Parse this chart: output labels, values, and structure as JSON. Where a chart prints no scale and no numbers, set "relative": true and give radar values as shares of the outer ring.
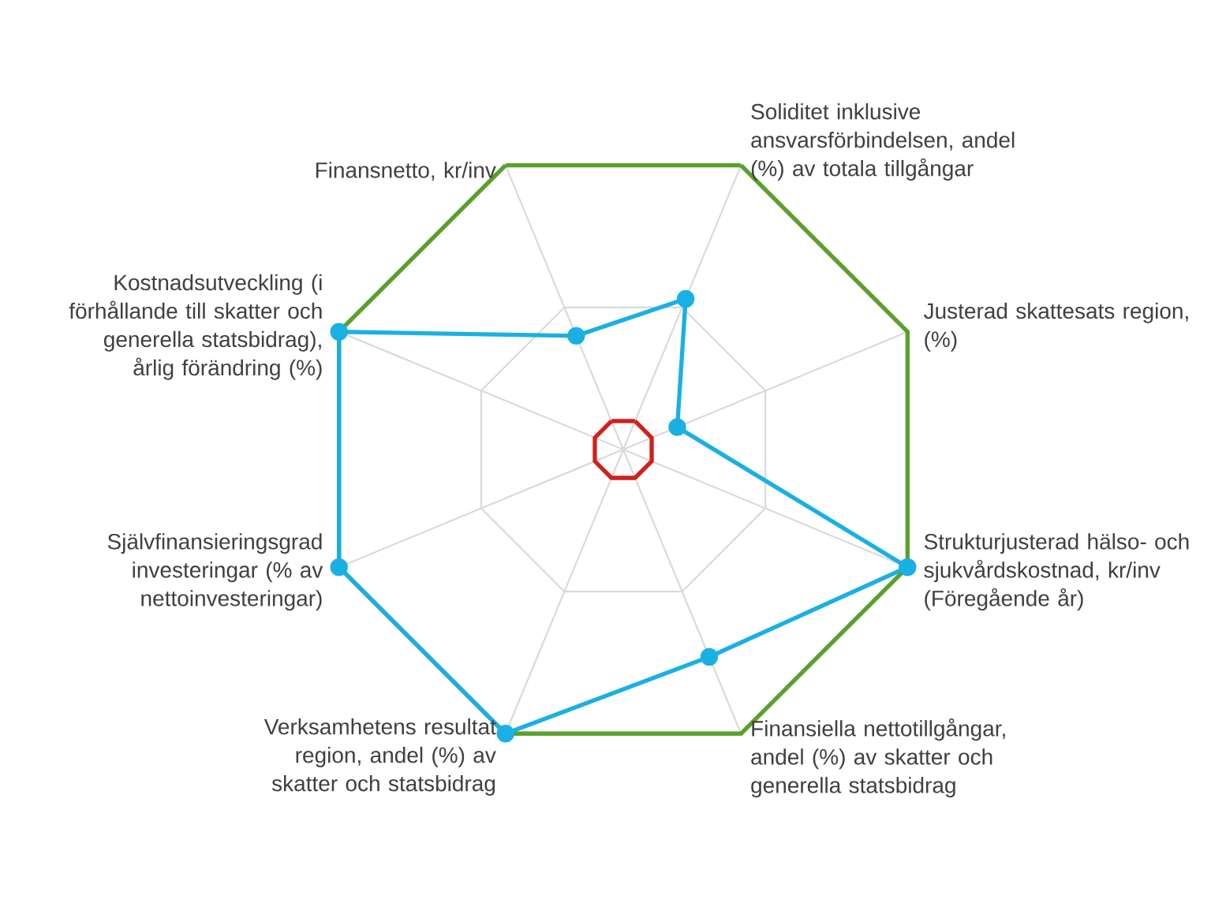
{
  "chart_data": {
    "type": "radar",
    "relative": true,
    "grid": true,
    "line_style": "solid",
    "categories": [
      "Soliditet inklusive ansvarsförbindelsen, andel (%) av totala tillgångar",
      "Justerad skattesats region, (%)",
      "Strukturjusterad hälso- och sjukvårdskostnad, kr/inv (Föregående år)",
      "Finansiella nettotillgångar, andel (%) av skatter och generella statsbidrag",
      "Verksamhetens resultat region, andel (%) av skatter och statsbidrag",
      "Självfinansieringsgrad investeringar (% av nettoinvesteringar)",
      "Kostnadsutveckling (i förhållande till skatter och generella statsbidrag), årlig förändring (%)",
      "Finansnetto, kr/inv"
    ],
    "series": [
      {
        "color": "#5aa02c",
        "marker": "none",
        "values": [
          1,
          1,
          1,
          1,
          1,
          1,
          1,
          1
        ]
      },
      {
        "color": "#d0211c",
        "marker": "none",
        "values": [
          0.1,
          0.1,
          0.1,
          0.1,
          0.1,
          0.1,
          0.1,
          0.1
        ]
      },
      {
        "color": "#1ab0e4",
        "marker": "circle",
        "values": [
          0.53,
          0.19,
          1,
          0.73,
          1,
          1,
          1,
          0.4
        ]
      }
    ]
  }
}
